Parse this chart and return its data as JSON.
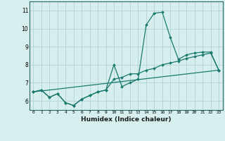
{
  "xlabel": "Humidex (Indice chaleur)",
  "ylabel": "",
  "xlim": [
    -0.5,
    23.5
  ],
  "ylim": [
    5.5,
    11.5
  ],
  "yticks": [
    6,
    7,
    8,
    9,
    10,
    11
  ],
  "xticks": [
    0,
    1,
    2,
    3,
    4,
    5,
    6,
    7,
    8,
    9,
    10,
    11,
    12,
    13,
    14,
    15,
    16,
    17,
    18,
    19,
    20,
    21,
    22,
    23
  ],
  "bg_color": "#d6eeee",
  "grid_color": "#b8d8d8",
  "line_color": "#1a7a6e",
  "lines": [
    {
      "x": [
        0,
        1,
        2,
        3,
        4,
        5,
        6,
        7,
        8,
        9,
        10,
        11,
        12,
        13,
        14,
        15,
        16,
        17,
        18,
        19,
        20,
        21,
        22,
        23
      ],
      "y": [
        6.5,
        6.6,
        6.2,
        6.4,
        5.9,
        5.75,
        6.1,
        6.3,
        6.5,
        6.6,
        8.0,
        6.8,
        7.0,
        7.2,
        10.2,
        10.85,
        10.9,
        9.5,
        8.3,
        8.55,
        8.65,
        8.7,
        8.7,
        7.7
      ]
    },
    {
      "x": [
        0,
        1,
        2,
        3,
        4,
        5,
        6,
        7,
        8,
        9,
        10,
        11,
        12,
        13,
        14,
        15,
        16,
        17,
        18,
        19,
        20,
        21,
        22,
        23
      ],
      "y": [
        6.5,
        6.6,
        6.2,
        6.4,
        5.9,
        5.75,
        6.1,
        6.3,
        6.5,
        6.6,
        7.2,
        7.3,
        7.5,
        7.5,
        7.7,
        7.8,
        8.0,
        8.1,
        8.2,
        8.35,
        8.45,
        8.55,
        8.65,
        7.7
      ]
    },
    {
      "x": [
        0,
        23
      ],
      "y": [
        6.5,
        7.7
      ]
    }
  ]
}
